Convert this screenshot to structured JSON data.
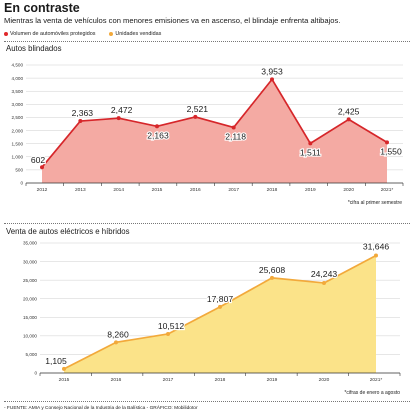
{
  "title": "En contraste",
  "subtitle": "Mientras la venta de vehículos con menores emisiones va en ascenso, el blindaje enfrenta altibajos.",
  "legend": [
    {
      "label": "Volumen de automóviles protegidos",
      "color": "#e0282b"
    },
    {
      "label": "Unidades vendidas",
      "color": "#f2a93b"
    }
  ],
  "source": "- FUENTE: AMIA y Consejo Nacional de la Industria de la Balística - GRÁFICO: Mobilidotor",
  "chart_data": [
    {
      "type": "area",
      "title": "Autos blindados",
      "categories": [
        "2012",
        "2013",
        "2014",
        "2015",
        "2016",
        "2017",
        "2018",
        "2019",
        "2020",
        "2021*"
      ],
      "series": [
        {
          "name": "Volumen de automóviles protegidos",
          "values": [
            602,
            2363,
            2472,
            2163,
            2521,
            2118,
            3953,
            1511,
            2425,
            1550
          ]
        }
      ],
      "value_labels": [
        "602",
        "2,363",
        "2,472",
        "2,163",
        "2,521",
        "2,118",
        "3,953",
        "1,511",
        "2,425",
        "1,550"
      ],
      "yticks": [
        "4,500",
        "4,000",
        "3,500",
        "3,000",
        "2,500",
        "2,000",
        "1,500",
        "1,000",
        "500",
        "0"
      ],
      "ylim": [
        0,
        4500
      ],
      "grid": true,
      "line_color": "#d6262a",
      "fill_color": "#f4aaa3",
      "footnote": "*cifra al primer semestre"
    },
    {
      "type": "area",
      "title": "Venta de autos eléctricos e híbridos",
      "categories": [
        "2015",
        "2016",
        "2017",
        "2018",
        "2019",
        "2020",
        "2021*"
      ],
      "series": [
        {
          "name": "Unidades vendidas",
          "values": [
            1105,
            8260,
            10512,
            17807,
            25608,
            24243,
            31646
          ]
        }
      ],
      "value_labels": [
        "1,105",
        "8,260",
        "10,512",
        "17,807",
        "25,608",
        "24,243",
        "31,646"
      ],
      "yticks": [
        "35,000",
        "30,000",
        "25,000",
        "20,000",
        "15,000",
        "10,000",
        "5,000",
        "0"
      ],
      "ylim": [
        0,
        35000
      ],
      "grid": true,
      "line_color": "#f2a93b",
      "fill_color": "#fbe389",
      "footnote": "*cifras de enero a agosto"
    }
  ]
}
